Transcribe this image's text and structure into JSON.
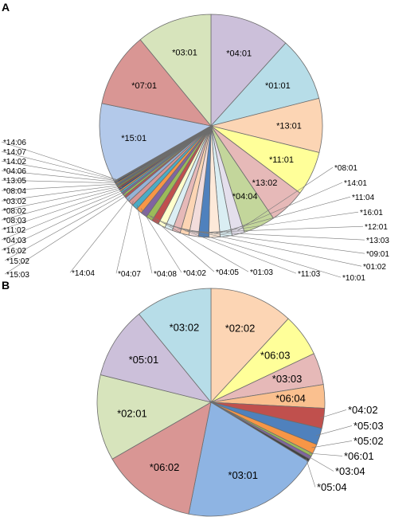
{
  "chart_data": [
    {
      "type": "pie",
      "panel_label": "A",
      "start_angle_deg": 0,
      "direction": "clockwise",
      "outline_color": "#6d6d6d",
      "slices": [
        {
          "label": "*04:01",
          "value": 10.9,
          "color": "#ccc0da"
        },
        {
          "label": "*01:01",
          "value": 8.7,
          "color": "#b7dde8"
        },
        {
          "label": "*13:01",
          "value": 7.3,
          "color": "#fcd5b4"
        },
        {
          "label": "*11:01",
          "value": 6.0,
          "color": "#ffff99"
        },
        {
          "label": "*13:02",
          "value": 4.9,
          "color": "#e6b9b8"
        },
        {
          "label": "*04:04",
          "value": 4.3,
          "color": "#c3d69b"
        },
        {
          "label": "*08:01",
          "value": 1.7,
          "color": "#e4dfec"
        },
        {
          "label": "*14:01",
          "value": 1.6,
          "color": "#daeef3"
        },
        {
          "label": "*11:04",
          "value": 1.5,
          "color": "#fde9d9"
        },
        {
          "label": "*16:01",
          "value": 1.4,
          "color": "#4f81bd"
        },
        {
          "label": "*12:01",
          "value": 1.3,
          "color": "#f2dcdb"
        },
        {
          "label": "*13:03",
          "value": 1.2,
          "color": "#fcd5b4"
        },
        {
          "label": "*09:01",
          "value": 1.1,
          "color": "#e6b9b8"
        },
        {
          "label": "*01:02",
          "value": 1.05,
          "color": "#dbeef3"
        },
        {
          "label": "*10:01",
          "value": 1.0,
          "color": "#ffffcc"
        },
        {
          "label": "*11:03",
          "value": 0.95,
          "color": "#c0504d"
        },
        {
          "label": "*01:03",
          "value": 0.9,
          "color": "#9bbb59"
        },
        {
          "label": "*04:05",
          "value": 0.85,
          "color": "#8064a2"
        },
        {
          "label": "*04:02",
          "value": 0.8,
          "color": "#f79646"
        },
        {
          "label": "*04:08",
          "value": 0.75,
          "color": "#4bacc6"
        },
        {
          "label": "*04:07",
          "value": 0.7,
          "color": "#d99694"
        },
        {
          "label": "*14:04",
          "value": 0.65,
          "color": "#95b3d7"
        },
        {
          "label": "*15:03",
          "value": 0.3,
          "color": "#c0504d"
        },
        {
          "label": "*15:02",
          "value": 0.3,
          "color": "#9bbb59"
        },
        {
          "label": "*16:02",
          "value": 0.25,
          "color": "#8064a2"
        },
        {
          "label": "*04:03",
          "value": 0.25,
          "color": "#4bacc6"
        },
        {
          "label": "*11:02",
          "value": 0.2,
          "color": "#f79646"
        },
        {
          "label": "*08:03",
          "value": 0.2,
          "color": "#1f497d"
        },
        {
          "label": "*08:02",
          "value": 0.2,
          "color": "#953735"
        },
        {
          "label": "*03:02",
          "value": 0.2,
          "color": "#77933c"
        },
        {
          "label": "*08:04",
          "value": 0.15,
          "color": "#604a7b"
        },
        {
          "label": "*13:05",
          "value": 0.15,
          "color": "#31859c"
        },
        {
          "label": "*04:06",
          "value": 0.15,
          "color": "#e46c0a"
        },
        {
          "label": "*14:02",
          "value": 0.15,
          "color": "#17375e"
        },
        {
          "label": "*14:07",
          "value": 0.1,
          "color": "#632523"
        },
        {
          "label": "*14:06",
          "value": 0.1,
          "color": "#4f6228"
        },
        {
          "label": "*15:01",
          "value": 10.7,
          "color": "#b3c9ea"
        },
        {
          "label": "*07:01",
          "value": 10.1,
          "color": "#d99694"
        },
        {
          "label": "*03:01",
          "value": 10.2,
          "color": "#d7e4bc"
        }
      ]
    },
    {
      "type": "pie",
      "panel_label": "B",
      "start_angle_deg": 0,
      "direction": "clockwise",
      "outline_color": "#6d6d6d",
      "slices": [
        {
          "label": "*02:02",
          "value": 12.1,
          "color": "#fcd5b4"
        },
        {
          "label": "*06:03",
          "value": 6.2,
          "color": "#ffff99"
        },
        {
          "label": "*03:03",
          "value": 4.6,
          "color": "#e6b9b8"
        },
        {
          "label": "*06:04",
          "value": 3.4,
          "color": "#fac08f"
        },
        {
          "label": "*04:02",
          "value": 2.9,
          "color": "#c0504d"
        },
        {
          "label": "*05:03",
          "value": 2.4,
          "color": "#4f81bd"
        },
        {
          "label": "*05:02",
          "value": 1.4,
          "color": "#f79646"
        },
        {
          "label": "*06:01",
          "value": 0.45,
          "color": "#9bbb59"
        },
        {
          "label": "*03:04",
          "value": 0.45,
          "color": "#8064a2"
        },
        {
          "label": "*05:04",
          "value": 0.4,
          "color": "#404040"
        },
        {
          "label": "*03:01",
          "value": 19.8,
          "color": "#8eb4e3"
        },
        {
          "label": "*06:02",
          "value": 13.8,
          "color": "#d99694"
        },
        {
          "label": "*02:01",
          "value": 12.4,
          "color": "#d7e4bc"
        },
        {
          "label": "*05:01",
          "value": 10.4,
          "color": "#ccc0da"
        },
        {
          "label": "*03:02",
          "value": 11.1,
          "color": "#b7dde8"
        }
      ]
    }
  ]
}
